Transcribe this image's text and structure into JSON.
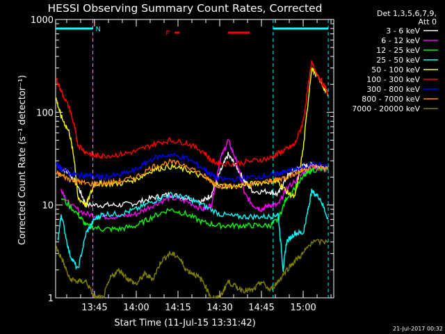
{
  "chart_data": {
    "type": "line",
    "title": "HESSI Observing Summary Count Rates, Corrected",
    "xlabel": "Start Time (11-Jul-15 13:31:42)",
    "ylabel": "Corrected Count Rate (s⁻¹ detector⁻¹)",
    "ylog": true,
    "ylim": [
      1,
      1000
    ],
    "xlim_minutes": [
      13.517,
      15.183
    ],
    "x_unit": "hours",
    "x_ticks": [
      {
        "t": 13.75,
        "label": "13:45"
      },
      {
        "t": 14.0,
        "label": "14:00"
      },
      {
        "t": 14.25,
        "label": "14:15"
      },
      {
        "t": 14.5,
        "label": "14:30"
      },
      {
        "t": 14.75,
        "label": "14:45"
      },
      {
        "t": 15.0,
        "label": "15:00"
      }
    ],
    "y_ticks": [
      {
        "v": 1,
        "label": "1"
      },
      {
        "v": 10,
        "label": "10"
      },
      {
        "v": 100,
        "label": "100"
      },
      {
        "v": 1000,
        "label": "1000"
      }
    ],
    "legend_header": [
      "Det 1,3,5,6,7,9,",
      "Att 0"
    ],
    "legend_position": "right",
    "footer_date": "21-Jul-2017 00:32",
    "annotations": {
      "N_label": "N",
      "F_label": "F",
      "N_bars": [
        [
          13.52,
          13.74
        ],
        [
          14.82,
          15.15
        ]
      ],
      "F_bars": [
        [
          14.23,
          14.26
        ],
        [
          14.55,
          14.68
        ]
      ],
      "night_edges": [
        13.74,
        14.82
      ],
      "bar_color": "#00ffff",
      "flare_color": "#ff0000"
    },
    "series": [
      {
        "name": "3 - 6 keV",
        "color": "#ffffff",
        "points": [
          [
            13.55,
            25
          ],
          [
            13.6,
            22
          ],
          [
            13.65,
            16
          ],
          [
            13.7,
            10
          ],
          [
            13.8,
            10
          ],
          [
            13.9,
            10
          ],
          [
            14.0,
            10.5
          ],
          [
            14.1,
            12
          ],
          [
            14.2,
            13
          ],
          [
            14.3,
            12
          ],
          [
            14.4,
            11
          ],
          [
            14.45,
            13
          ],
          [
            14.5,
            22
          ],
          [
            14.55,
            35
          ],
          [
            14.6,
            26
          ],
          [
            14.65,
            18
          ],
          [
            14.7,
            14
          ],
          [
            14.8,
            14
          ],
          [
            14.85,
            13
          ],
          [
            14.9,
            20
          ],
          [
            14.95,
            24
          ],
          [
            15.0,
            26
          ],
          [
            15.05,
            27
          ],
          [
            15.15,
            25
          ]
        ]
      },
      {
        "name": "6 - 12 keV",
        "color": "#ff00ff",
        "points": [
          [
            13.55,
            15
          ],
          [
            13.6,
            10
          ],
          [
            13.7,
            8
          ],
          [
            13.8,
            7.5
          ],
          [
            13.9,
            7.5
          ],
          [
            14.0,
            8
          ],
          [
            14.1,
            10
          ],
          [
            14.2,
            12
          ],
          [
            14.3,
            11
          ],
          [
            14.4,
            9
          ],
          [
            14.45,
            10
          ],
          [
            14.5,
            30
          ],
          [
            14.55,
            50
          ],
          [
            14.6,
            30
          ],
          [
            14.65,
            13
          ],
          [
            14.7,
            10
          ],
          [
            14.75,
            9
          ],
          [
            14.8,
            10
          ],
          [
            14.85,
            10
          ],
          [
            14.9,
            15
          ],
          [
            15.0,
            22
          ],
          [
            15.05,
            26
          ],
          [
            15.15,
            24
          ]
        ]
      },
      {
        "name": "12 - 25 keV",
        "color": "#00ff00",
        "points": [
          [
            13.55,
            12
          ],
          [
            13.65,
            8
          ],
          [
            13.7,
            6
          ],
          [
            13.8,
            5.5
          ],
          [
            13.9,
            5.5
          ],
          [
            14.0,
            6
          ],
          [
            14.1,
            7.5
          ],
          [
            14.2,
            9
          ],
          [
            14.3,
            8
          ],
          [
            14.4,
            6.5
          ],
          [
            14.5,
            6
          ],
          [
            14.6,
            6
          ],
          [
            14.7,
            6
          ],
          [
            14.8,
            6
          ],
          [
            14.85,
            7
          ],
          [
            14.9,
            12
          ],
          [
            15.0,
            20
          ],
          [
            15.05,
            24
          ],
          [
            15.15,
            24
          ]
        ]
      },
      {
        "name": "25 - 50 keV",
        "color": "#00ffff",
        "points": [
          [
            13.53,
            4
          ],
          [
            13.55,
            8
          ],
          [
            13.6,
            3
          ],
          [
            13.65,
            2
          ],
          [
            13.7,
            5
          ],
          [
            13.75,
            7
          ],
          [
            13.8,
            8
          ],
          [
            13.9,
            8
          ],
          [
            14.0,
            9
          ],
          [
            14.1,
            11
          ],
          [
            14.2,
            13
          ],
          [
            14.3,
            12
          ],
          [
            14.4,
            10
          ],
          [
            14.5,
            8
          ],
          [
            14.6,
            7.5
          ],
          [
            14.7,
            7.5
          ],
          [
            14.8,
            7.5
          ],
          [
            14.85,
            8
          ],
          [
            14.88,
            2
          ],
          [
            14.9,
            4
          ],
          [
            14.95,
            5
          ],
          [
            15.0,
            5
          ],
          [
            15.03,
            9
          ],
          [
            15.05,
            14
          ],
          [
            15.1,
            12
          ],
          [
            15.15,
            7
          ]
        ]
      },
      {
        "name": "50 - 100 keV",
        "color": "#ffff00",
        "points": [
          [
            13.52,
            140
          ],
          [
            13.55,
            90
          ],
          [
            13.6,
            60
          ],
          [
            13.63,
            30
          ],
          [
            13.65,
            12
          ],
          [
            13.7,
            10
          ],
          [
            13.75,
            17
          ],
          [
            13.8,
            17
          ],
          [
            13.9,
            17
          ],
          [
            14.0,
            19
          ],
          [
            14.1,
            24
          ],
          [
            14.2,
            26
          ],
          [
            14.3,
            24
          ],
          [
            14.4,
            20
          ],
          [
            14.5,
            16
          ],
          [
            14.6,
            16
          ],
          [
            14.7,
            17
          ],
          [
            14.8,
            18
          ],
          [
            14.85,
            18
          ],
          [
            14.9,
            14
          ],
          [
            14.95,
            12
          ],
          [
            15.0,
            40
          ],
          [
            15.05,
            300
          ],
          [
            15.1,
            220
          ],
          [
            15.15,
            150
          ]
        ]
      },
      {
        "name": "100 - 300 keV",
        "color": "#ff0000",
        "points": [
          [
            13.52,
            230
          ],
          [
            13.55,
            170
          ],
          [
            13.6,
            110
          ],
          [
            13.63,
            70
          ],
          [
            13.65,
            45
          ],
          [
            13.7,
            37
          ],
          [
            13.75,
            34
          ],
          [
            13.8,
            34
          ],
          [
            13.9,
            35
          ],
          [
            14.0,
            38
          ],
          [
            14.1,
            45
          ],
          [
            14.2,
            50
          ],
          [
            14.3,
            47
          ],
          [
            14.4,
            38
          ],
          [
            14.45,
            30
          ],
          [
            14.5,
            28
          ],
          [
            14.6,
            28
          ],
          [
            14.7,
            30
          ],
          [
            14.8,
            32
          ],
          [
            14.85,
            36
          ],
          [
            14.9,
            40
          ],
          [
            14.95,
            45
          ],
          [
            15.0,
            80
          ],
          [
            15.05,
            340
          ],
          [
            15.1,
            230
          ],
          [
            15.15,
            160
          ]
        ]
      },
      {
        "name": "300 - 800 keV",
        "color": "#0000ff",
        "points": [
          [
            13.52,
            27
          ],
          [
            13.55,
            25
          ],
          [
            13.6,
            22
          ],
          [
            13.65,
            21
          ],
          [
            13.7,
            21
          ],
          [
            13.75,
            20
          ],
          [
            13.8,
            20
          ],
          [
            13.9,
            21
          ],
          [
            14.0,
            24
          ],
          [
            14.1,
            32
          ],
          [
            14.2,
            35
          ],
          [
            14.3,
            32
          ],
          [
            14.4,
            25
          ],
          [
            14.45,
            21
          ],
          [
            14.5,
            19
          ],
          [
            14.6,
            19
          ],
          [
            14.7,
            20
          ],
          [
            14.8,
            21
          ],
          [
            14.85,
            22
          ],
          [
            14.9,
            23
          ],
          [
            14.95,
            24
          ],
          [
            15.0,
            25
          ],
          [
            15.05,
            28
          ],
          [
            15.15,
            26
          ]
        ]
      },
      {
        "name": "800 - 7000 keV",
        "color": "#ff8c00",
        "points": [
          [
            13.52,
            22
          ],
          [
            13.55,
            21
          ],
          [
            13.6,
            19
          ],
          [
            13.65,
            18
          ],
          [
            13.7,
            17
          ],
          [
            13.8,
            17
          ],
          [
            13.9,
            18
          ],
          [
            14.0,
            20
          ],
          [
            14.1,
            26
          ],
          [
            14.2,
            29
          ],
          [
            14.3,
            27
          ],
          [
            14.4,
            21
          ],
          [
            14.45,
            18
          ],
          [
            14.5,
            16
          ],
          [
            14.6,
            16
          ],
          [
            14.7,
            17
          ],
          [
            14.8,
            18
          ],
          [
            14.85,
            19
          ],
          [
            14.9,
            20
          ],
          [
            14.95,
            22
          ],
          [
            15.0,
            24
          ],
          [
            15.05,
            26
          ],
          [
            15.15,
            25
          ]
        ]
      },
      {
        "name": "7000 - 20000 keV",
        "color": "#808000",
        "points": [
          [
            13.52,
            3.5
          ],
          [
            13.56,
            2.5
          ],
          [
            13.6,
            1.6
          ],
          [
            13.65,
            1.5
          ],
          [
            13.7,
            1.5
          ],
          [
            13.75,
            1
          ],
          [
            13.8,
            1
          ],
          [
            13.85,
            1.7
          ],
          [
            13.9,
            2
          ],
          [
            13.95,
            1.6
          ],
          [
            14.0,
            1.4
          ],
          [
            14.05,
            1.8
          ],
          [
            14.1,
            1.6
          ],
          [
            14.15,
            2.5
          ],
          [
            14.2,
            3
          ],
          [
            14.25,
            2.8
          ],
          [
            14.3,
            2
          ],
          [
            14.35,
            1.8
          ],
          [
            14.4,
            1.5
          ],
          [
            14.45,
            1
          ],
          [
            14.5,
            1
          ],
          [
            14.55,
            1.5
          ],
          [
            14.6,
            1.3
          ],
          [
            14.65,
            1.2
          ],
          [
            14.7,
            1.2
          ],
          [
            14.75,
            1.5
          ],
          [
            14.8,
            1.2
          ],
          [
            14.85,
            1.5
          ],
          [
            14.9,
            2
          ],
          [
            14.95,
            2.5
          ],
          [
            15.0,
            3
          ],
          [
            15.05,
            4
          ],
          [
            15.15,
            4
          ]
        ]
      }
    ]
  }
}
